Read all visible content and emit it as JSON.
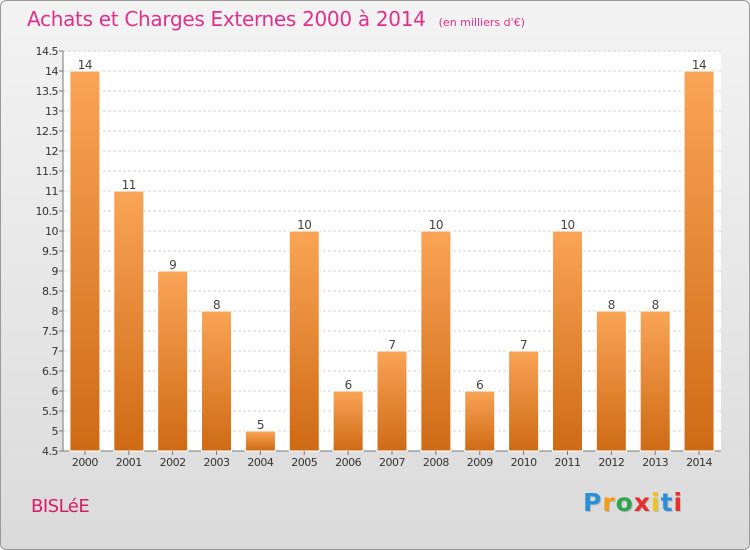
{
  "title": "Achats et Charges Externes 2000 à 2014",
  "subtitle": "(en milliers d'€)",
  "commune": "BISLéE",
  "brand": {
    "letters": [
      "P",
      "r",
      "o",
      "x",
      "i",
      "t",
      "i"
    ],
    "colors": [
      "#2b8fd6",
      "#f39c12",
      "#2ea44f",
      "#e52e2e",
      "#f1c40f",
      "#2b8fd6",
      "#e52e2e"
    ]
  },
  "colors": {
    "bar_light": "#f9a456",
    "bar_dark": "#cf6a14",
    "title": "#e0308a",
    "commune": "#d81e62"
  },
  "chart_data": {
    "type": "bar",
    "categories": [
      "2000",
      "2001",
      "2002",
      "2003",
      "2004",
      "2005",
      "2006",
      "2007",
      "2008",
      "2009",
      "2010",
      "2011",
      "2012",
      "2013",
      "2014"
    ],
    "values": [
      14,
      11,
      9,
      8,
      5,
      10,
      6,
      7,
      10,
      6,
      7,
      10,
      8,
      8,
      14
    ],
    "data_labels": [
      "14",
      "11",
      "9",
      "8",
      "5",
      "10",
      "6",
      "7",
      "10",
      "6",
      "7",
      "10",
      "8",
      "8",
      "14"
    ],
    "ylim": [
      4.5,
      14.5
    ],
    "yticks": [
      "4.5",
      "5",
      "5.5",
      "6",
      "6.5",
      "7",
      "7.5",
      "8",
      "8.5",
      "9",
      "9.5",
      "10",
      "10.5",
      "11",
      "11.5",
      "12",
      "12.5",
      "13",
      "13.5",
      "14",
      "14.5"
    ],
    "grid": true
  }
}
